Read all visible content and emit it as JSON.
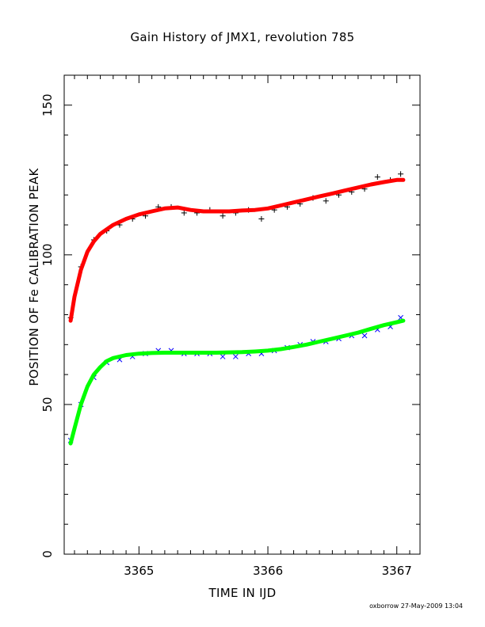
{
  "chart_data": {
    "type": "scatter",
    "title": "Gain History of JMX1, revolution 785",
    "xlabel": "TIME IN IJD",
    "ylabel": "POSITION OF Fe CALIBRATION PEAK",
    "xlim": [
      3364.42,
      3367.18
    ],
    "ylim": [
      0,
      160
    ],
    "xticks": [
      3365,
      3366,
      3367
    ],
    "yticks": [
      0,
      50,
      100,
      150
    ],
    "grid": false,
    "legend": "none",
    "series": [
      {
        "marker": "plus",
        "color": "#000000",
        "x": [
          3364.47,
          3364.55,
          3364.65,
          3364.75,
          3364.85,
          3364.95,
          3365.05,
          3365.15,
          3365.25,
          3365.35,
          3365.45,
          3365.55,
          3365.65,
          3365.75,
          3365.85,
          3365.95,
          3366.05,
          3366.15,
          3366.25,
          3366.35,
          3366.45,
          3366.55,
          3366.65,
          3366.75,
          3366.85,
          3366.95,
          3367.03
        ],
        "y": [
          79,
          96,
          105,
          108,
          110,
          112,
          113,
          116,
          116,
          114,
          114,
          115,
          113,
          114,
          115,
          112,
          115,
          116,
          117,
          119,
          118,
          120,
          121,
          122,
          126,
          125,
          127
        ]
      },
      {
        "marker": "line",
        "color": "#ff0000",
        "x": [
          3364.47,
          3364.5,
          3364.55,
          3364.6,
          3364.65,
          3364.7,
          3364.75,
          3364.8,
          3364.9,
          3365.0,
          3365.1,
          3365.2,
          3365.3,
          3365.4,
          3365.5,
          3365.6,
          3365.7,
          3365.8,
          3365.9,
          3366.0,
          3366.1,
          3366.2,
          3366.3,
          3366.4,
          3366.5,
          3366.6,
          3366.7,
          3366.8,
          3366.9,
          3367.0,
          3367.05
        ],
        "y": [
          78,
          86,
          95,
          101,
          104.5,
          107,
          108.5,
          110,
          112,
          113.5,
          114.5,
          115.5,
          115.8,
          115,
          114.5,
          114.5,
          114.5,
          114.8,
          115,
          115.5,
          116.5,
          117.5,
          118.5,
          119.5,
          120.5,
          121.5,
          122.5,
          123.5,
          124.3,
          125,
          125
        ]
      },
      {
        "marker": "cross",
        "color": "#0000ff",
        "x": [
          3364.47,
          3364.55,
          3364.65,
          3364.75,
          3364.85,
          3364.95,
          3365.05,
          3365.15,
          3365.25,
          3365.35,
          3365.45,
          3365.55,
          3365.65,
          3365.75,
          3365.85,
          3365.95,
          3366.05,
          3366.15,
          3366.25,
          3366.35,
          3366.45,
          3366.55,
          3366.65,
          3366.75,
          3366.85,
          3366.95,
          3367.03
        ],
        "y": [
          38,
          50,
          59,
          64,
          65,
          66,
          67,
          68,
          68,
          67,
          67,
          67,
          66,
          66,
          67,
          67,
          68,
          69,
          70,
          71,
          71,
          72,
          73,
          73,
          75,
          76,
          79
        ]
      },
      {
        "marker": "line",
        "color": "#00ff00",
        "x": [
          3364.47,
          3364.5,
          3364.55,
          3364.6,
          3364.65,
          3364.7,
          3364.75,
          3364.8,
          3364.9,
          3365.0,
          3365.1,
          3365.2,
          3365.3,
          3365.4,
          3365.5,
          3365.6,
          3365.7,
          3365.8,
          3365.9,
          3366.0,
          3366.1,
          3366.2,
          3366.3,
          3366.4,
          3366.5,
          3366.6,
          3366.7,
          3366.8,
          3366.9,
          3367.0,
          3367.05
        ],
        "y": [
          37,
          42,
          50,
          56,
          60,
          62.5,
          64.5,
          65.5,
          66.5,
          67,
          67.2,
          67.3,
          67.3,
          67.3,
          67.3,
          67.3,
          67.4,
          67.5,
          67.7,
          68,
          68.5,
          69.2,
          70,
          71,
          72,
          73,
          74,
          75.3,
          76.5,
          77.5,
          78
        ]
      }
    ]
  },
  "footer": {
    "credit": "oxborrow 27-May-2009 13:04"
  }
}
